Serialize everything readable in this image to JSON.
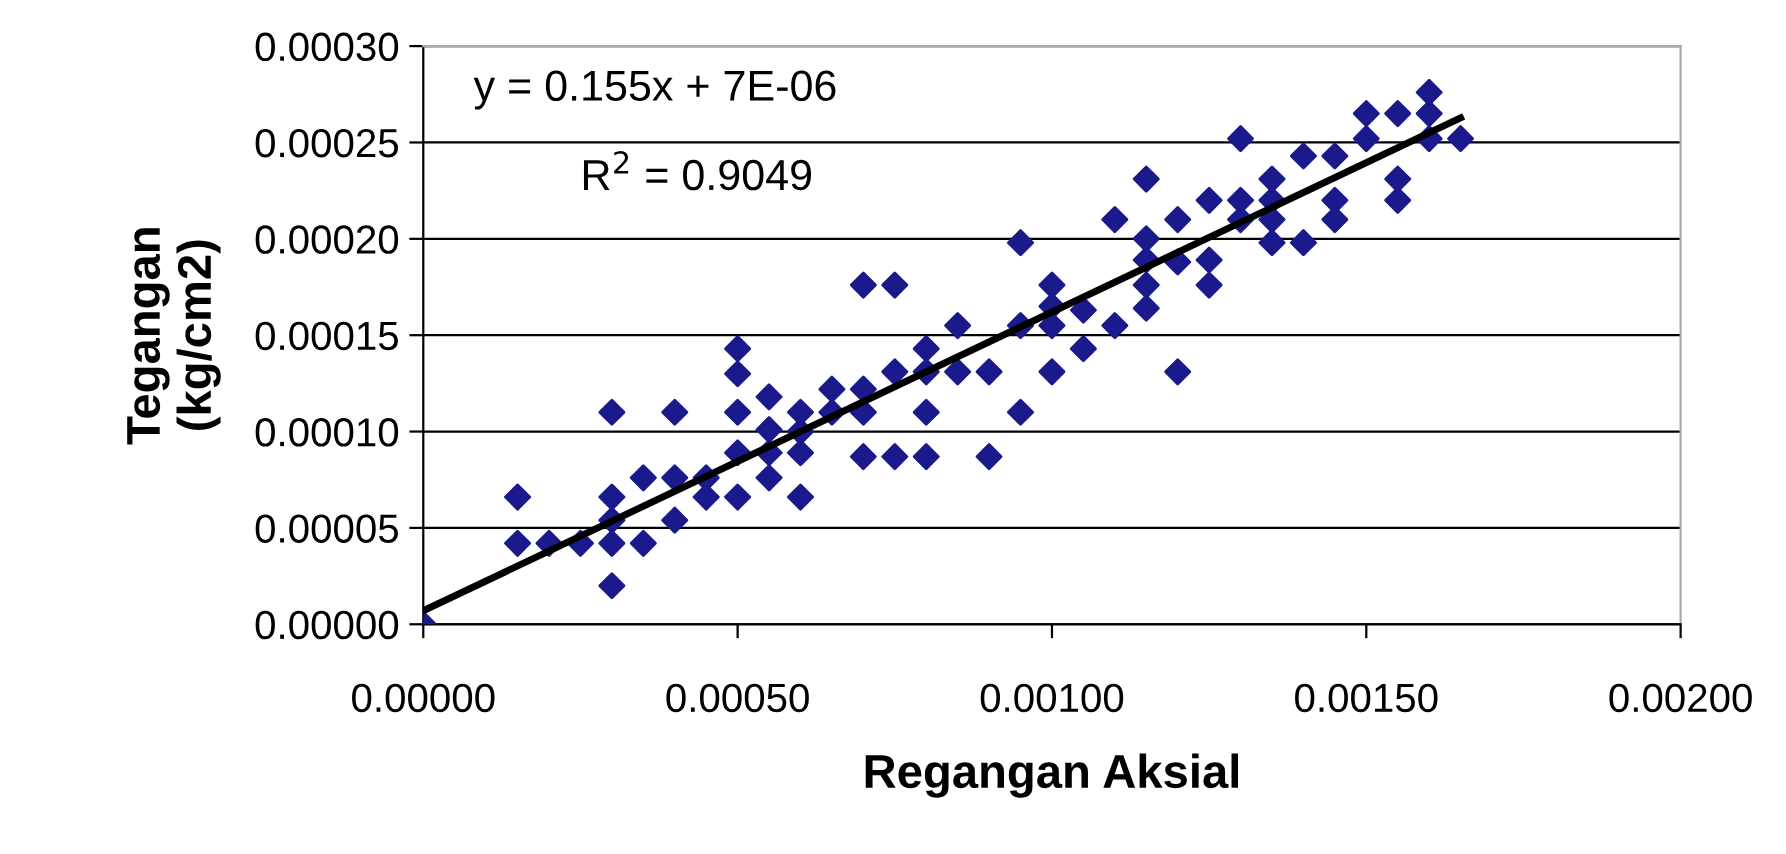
{
  "chart_data": {
    "type": "scatter",
    "xlabel": "Regangan Aksial",
    "ylabel": "Tegangan\n(kg/cm2)",
    "annotations": [
      "y = 0.155x + 7E-06",
      "R$^{2}$ = 0.9049"
    ],
    "xlim": [
      0,
      0.002
    ],
    "xticks": [
      {
        "value": 0,
        "label": "0.00000"
      },
      {
        "value": 0.0005,
        "label": "0.00050"
      },
      {
        "value": 0.001,
        "label": "0.00100"
      },
      {
        "value": 0.0015,
        "label": "0.00150"
      },
      {
        "value": 0.002,
        "label": "0.00200"
      }
    ],
    "ylim": [
      0,
      0.0003
    ],
    "yticks": [
      {
        "value": 0,
        "label": "0.00000"
      },
      {
        "value": 5e-05,
        "label": "0.00005"
      },
      {
        "value": 0.0001,
        "label": "0.00010"
      },
      {
        "value": 0.00015,
        "label": "0.00015"
      },
      {
        "value": 0.0002,
        "label": "0.00020"
      },
      {
        "value": 0.00025,
        "label": "0.00025"
      },
      {
        "value": 0.0003,
        "label": "0.00030"
      }
    ],
    "grid": "y",
    "marker": "diamond",
    "legend": false,
    "series": [
      {
        "color": "#1a1a8c",
        "x": [
          0,
          0.00015,
          0.00015,
          0.0002,
          0.00025,
          0.0003,
          0.0003,
          0.0003,
          0.0003,
          0.0003,
          0.00035,
          0.00035,
          0.0004,
          0.0004,
          0.0004,
          0.00045,
          0.00045,
          0.0005,
          0.0005,
          0.0005,
          0.0005,
          0.0005,
          0.00055,
          0.00055,
          0.00055,
          0.00055,
          0.0006,
          0.0006,
          0.0006,
          0.0006,
          0.00065,
          0.00065,
          0.0007,
          0.0007,
          0.0007,
          0.0007,
          0.00075,
          0.00075,
          0.00075,
          0.0008,
          0.0008,
          0.0008,
          0.0008,
          0.00085,
          0.00085,
          0.0009,
          0.0009,
          0.00095,
          0.00095,
          0.00095,
          0.001,
          0.001,
          0.001,
          0.001,
          0.00105,
          0.00105,
          0.0011,
          0.0011,
          0.00115,
          0.00115,
          0.00115,
          0.00115,
          0.00115,
          0.0012,
          0.0012,
          0.0012,
          0.00125,
          0.00125,
          0.00125,
          0.0013,
          0.0013,
          0.0013,
          0.00135,
          0.00135,
          0.00135,
          0.00135,
          0.0014,
          0.0014,
          0.00145,
          0.00145,
          0.00145,
          0.0015,
          0.0015,
          0.00155,
          0.00155,
          0.00155,
          0.0016,
          0.0016,
          0.0016,
          0.00165
        ],
        "values": [
          0,
          6.6e-05,
          4.2e-05,
          4.2e-05,
          4.2e-05,
          0.00011,
          6.6e-05,
          5.4e-05,
          4.2e-05,
          2e-05,
          7.6e-05,
          4.2e-05,
          0.00011,
          7.6e-05,
          5.4e-05,
          7.6e-05,
          6.6e-05,
          0.000143,
          0.00013,
          0.00011,
          8.9e-05,
          6.6e-05,
          0.000118,
          0.000101,
          8.9e-05,
          7.6e-05,
          0.00011,
          0.0001,
          8.9e-05,
          6.6e-05,
          0.000122,
          0.00011,
          0.000176,
          0.000122,
          0.00011,
          8.7e-05,
          0.000176,
          0.000131,
          8.7e-05,
          0.000143,
          0.000131,
          0.00011,
          8.7e-05,
          0.000155,
          0.000131,
          0.000131,
          8.7e-05,
          0.000198,
          0.000155,
          0.00011,
          0.000176,
          0.000165,
          0.000155,
          0.000131,
          0.000163,
          0.000143,
          0.00021,
          0.000155,
          0.000231,
          0.0002,
          0.000189,
          0.000176,
          0.000164,
          0.00021,
          0.000188,
          0.000131,
          0.00022,
          0.000189,
          0.000176,
          0.000252,
          0.00022,
          0.00021,
          0.000231,
          0.00022,
          0.00021,
          0.000198,
          0.000243,
          0.000198,
          0.000243,
          0.00022,
          0.00021,
          0.000265,
          0.000252,
          0.000265,
          0.000231,
          0.00022,
          0.000276,
          0.000265,
          0.000252,
          0.000252
        ]
      },
      {
        "type": "line",
        "color": "#000000",
        "marker": "none",
        "line_style": "solid",
        "x": [
          0,
          0.00165
        ],
        "values": [
          7e-06,
          0.00026275
        ]
      }
    ]
  }
}
